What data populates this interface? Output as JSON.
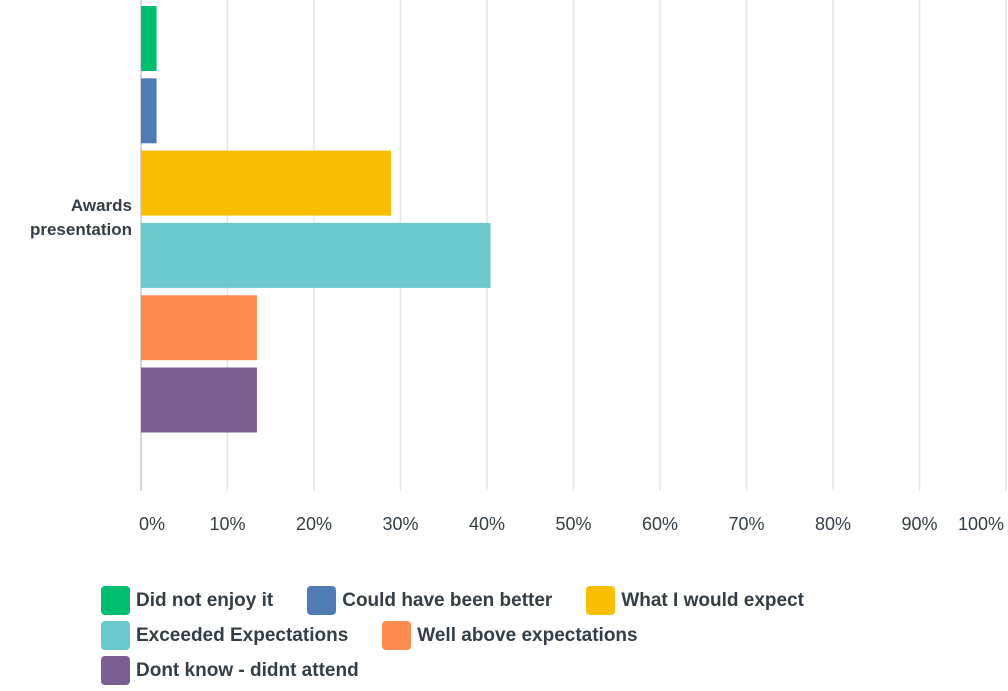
{
  "chart_data": {
    "type": "bar",
    "orientation": "horizontal",
    "categories": [
      "Awards presentation"
    ],
    "category_label_lines": [
      "Awards",
      "presentation"
    ],
    "series": [
      {
        "name": "Did not enjoy it",
        "values": [
          1.8
        ],
        "color": "#00bf6f"
      },
      {
        "name": "Could have been better",
        "values": [
          1.8
        ],
        "color": "#507cb6"
      },
      {
        "name": "What I would expect",
        "values": [
          28.9
        ],
        "color": "#f9be00"
      },
      {
        "name": "Exceeded Expectations",
        "values": [
          40.4
        ],
        "color": "#6bc8cd"
      },
      {
        "name": "Well above expectations",
        "values": [
          13.4
        ],
        "color": "#ff8b4f"
      },
      {
        "name": "Dont know - didnt attend",
        "values": [
          13.4
        ],
        "color": "#7d5e90"
      }
    ],
    "xlim": [
      0,
      100
    ],
    "x_ticks": [
      "0%",
      "10%",
      "20%",
      "30%",
      "40%",
      "50%",
      "60%",
      "70%",
      "80%",
      "90%",
      "100%"
    ],
    "grid": true,
    "legend_position": "bottom"
  }
}
